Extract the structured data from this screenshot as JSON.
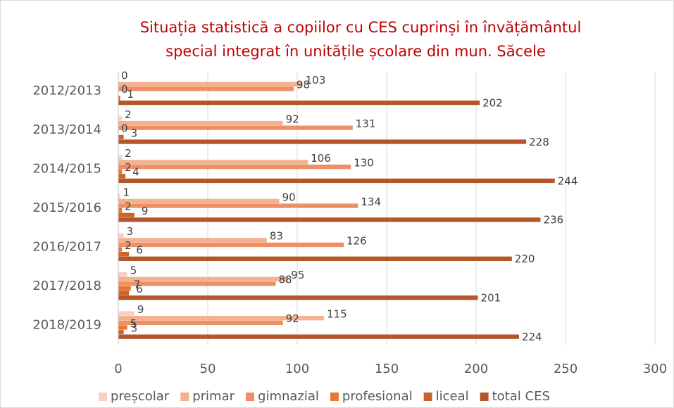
{
  "chart_data": {
    "type": "bar",
    "orientation": "horizontal",
    "title": [
      "Situația statistică a copiilor cu CES cuprinși în învățământul",
      "special integrat în unitățile școlare din mun. Săcele"
    ],
    "categories": [
      "2012/2013",
      "2013/2014",
      "2014/2015",
      "2015/2016",
      "2016/2017",
      "2017/2018",
      "2018/2019"
    ],
    "series": [
      {
        "name": "preșcolar",
        "color": "#f8cfc0",
        "values": [
          0,
          2,
          2,
          1,
          3,
          5,
          9
        ]
      },
      {
        "name": "primar",
        "color": "#f4b18e",
        "values": [
          103,
          92,
          106,
          90,
          83,
          95,
          115
        ]
      },
      {
        "name": "gimnazial",
        "color": "#ee8f65",
        "values": [
          98,
          131,
          130,
          134,
          126,
          88,
          92
        ]
      },
      {
        "name": "profesional",
        "color": "#e9782e",
        "values": [
          0,
          0,
          2,
          2,
          2,
          7,
          5
        ]
      },
      {
        "name": "liceal",
        "color": "#c9652c",
        "values": [
          1,
          3,
          4,
          9,
          6,
          6,
          3
        ]
      },
      {
        "name": "total CES",
        "color": "#b4552a",
        "values": [
          202,
          228,
          244,
          236,
          220,
          201,
          224
        ]
      }
    ],
    "xlim": [
      0,
      300
    ],
    "xticks": [
      0,
      50,
      100,
      150,
      200,
      250,
      300
    ],
    "grid": true,
    "legend": "bottom"
  }
}
